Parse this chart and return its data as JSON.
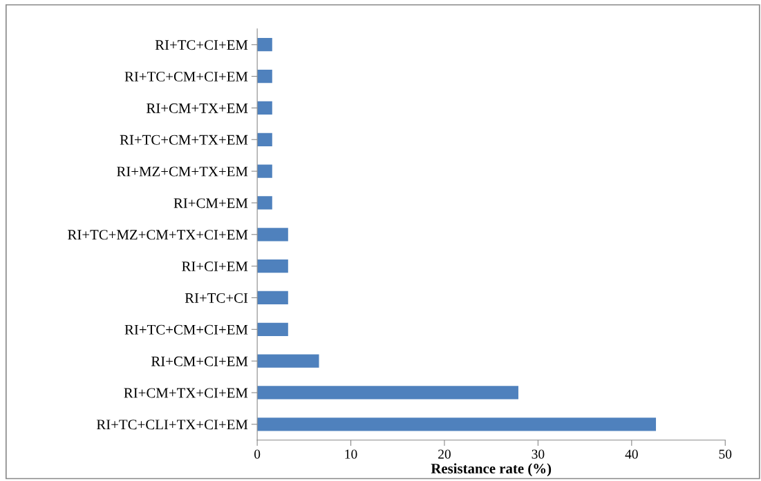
{
  "chart_data": {
    "type": "bar",
    "orientation": "horizontal",
    "xlabel": "Resistance rate (%)",
    "categories": [
      "RI+TC+CI+EM",
      "RI+TC+CM+CI+EM",
      "RI+CM+TX+EM",
      "RI+TC+CM+TX+EM",
      "RI+MZ+CM+TX+EM",
      "RI+CM+EM",
      "RI+TC+MZ+CM+TX+CI+EM",
      "RI+CI+EM",
      "RI+TC+CI",
      "RI+TC+CM+CI+EM",
      "RI+CM+CI+EM",
      "RI+CM+TX+CI+EM",
      "RI+TC+CLI+TX+CI+EM"
    ],
    "values": [
      1.6,
      1.6,
      1.6,
      1.6,
      1.6,
      1.6,
      3.3,
      3.3,
      3.3,
      3.3,
      6.6,
      27.9,
      42.6
    ],
    "color": "#4f81bd",
    "xlim": [
      0,
      50
    ],
    "xticks": [
      0,
      10,
      20,
      30,
      40,
      50
    ],
    "grid": false,
    "legend": false
  }
}
